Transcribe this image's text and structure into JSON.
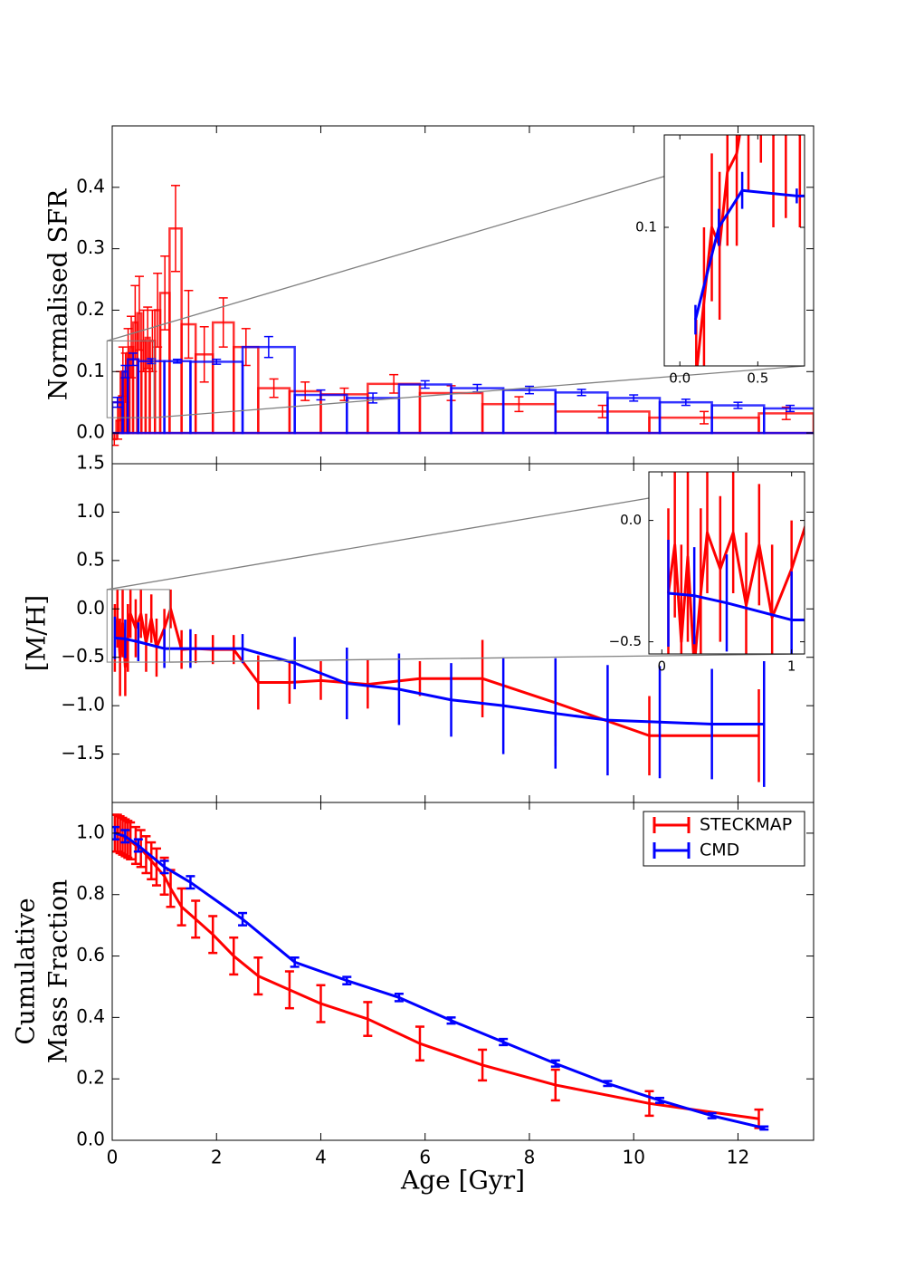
{
  "chart_data": [
    {
      "type": "histogram",
      "ylabel": "Normalised SFR",
      "xlim": [
        0,
        13.45
      ],
      "ylim": [
        -0.05,
        0.5
      ],
      "yticks": [
        {
          "value": 0,
          "label": "0.0"
        },
        0.1,
        0.2,
        0.3,
        0.4
      ],
      "series": [
        {
          "color": "#ff0000",
          "bins": [
            0.0,
            0.08,
            0.13,
            0.18,
            0.23,
            0.28,
            0.33,
            0.4,
            0.48,
            0.56,
            0.64,
            0.72,
            0.82,
            0.92,
            1.1,
            1.33,
            1.6,
            1.93,
            2.33,
            2.8,
            3.4,
            4.0,
            4.9,
            5.9,
            7.1,
            8.5,
            10.3,
            12.4,
            13.45
          ],
          "values": [
            -0.01,
            0.02,
            0.06,
            0.1,
            0.09,
            0.13,
            0.14,
            0.18,
            0.195,
            0.15,
            0.155,
            0.15,
            0.2,
            0.228,
            0.333,
            0.177,
            0.128,
            0.18,
            0.14,
            0.073,
            0.068,
            0.063,
            0.08,
            0.065,
            0.047,
            0.035,
            0.025,
            0.032
          ],
          "errors": [
            0.01,
            0.03,
            0.04,
            0.04,
            0.04,
            0.04,
            0.05,
            0.06,
            0.06,
            0.05,
            0.05,
            0.05,
            0.06,
            0.06,
            0.07,
            0.055,
            0.045,
            0.04,
            0.03,
            0.015,
            0.015,
            0.01,
            0.015,
            0.012,
            0.012,
            0.01,
            0.01,
            0.01
          ]
        },
        {
          "color": "#0000ff",
          "bins": [
            0,
            0.2,
            0.3,
            0.5,
            1.0,
            1.5,
            2.5,
            3.5,
            4.5,
            5.5,
            6.5,
            7.5,
            8.5,
            9.5,
            10.5,
            11.5,
            12.5,
            13.5
          ],
          "values": [
            0.05,
            0.1,
            0.12,
            0.117,
            0.117,
            0.116,
            0.14,
            0.062,
            0.057,
            0.079,
            0.073,
            0.07,
            0.066,
            0.057,
            0.05,
            0.045,
            0.04
          ],
          "errors": [
            0.008,
            0.01,
            0.01,
            0.004,
            0.003,
            0.004,
            0.017,
            0.008,
            0.008,
            0.006,
            0.006,
            0.006,
            0.005,
            0.005,
            0.005,
            0.005,
            0.005
          ]
        }
      ],
      "inset": {
        "xlim": [
          -0.1,
          0.8
        ],
        "ylim": [
          0.025,
          0.15
        ],
        "xticks": [
          {
            "value": 0,
            "label": "0.0"
          },
          0.5
        ],
        "yticks": [
          0.1
        ]
      }
    },
    {
      "type": "line",
      "ylabel": "[M/H]",
      "xlim": [
        0,
        13.45
      ],
      "ylim": [
        -2.0,
        1.5
      ],
      "yticks": [
        1.5,
        {
          "value": 1,
          "label": "1.0"
        },
        0.5,
        {
          "value": 0,
          "label": "0.0"
        },
        {
          "value": -0.5,
          "label": "−0.5"
        },
        {
          "value": -1,
          "label": "−1.0"
        },
        {
          "value": -1.5,
          "label": "−1.5"
        }
      ],
      "series": [
        {
          "color": "#ff0000",
          "x": [
            0.05,
            0.1,
            0.15,
            0.2,
            0.25,
            0.3,
            0.35,
            0.45,
            0.55,
            0.65,
            0.75,
            0.85,
            1.0,
            1.12,
            1.33,
            1.6,
            1.93,
            2.33,
            2.8,
            3.4,
            4.0,
            4.9,
            5.9,
            7.1,
            8.5,
            10.3,
            12.4
          ],
          "values": [
            -0.3,
            -0.1,
            -0.5,
            -0.15,
            -0.6,
            -0.3,
            -0.05,
            -0.2,
            -0.05,
            -0.35,
            -0.1,
            -0.4,
            -0.2,
            0.0,
            -0.42,
            -0.41,
            -0.42,
            -0.42,
            -0.76,
            -0.76,
            -0.74,
            -0.78,
            -0.72,
            -0.72,
            -0.97,
            -1.31,
            -1.31
          ],
          "errors": [
            0.35,
            0.3,
            0.4,
            0.35,
            0.3,
            0.35,
            0.25,
            0.3,
            0.25,
            0.3,
            0.25,
            0.3,
            0.2,
            0.2,
            0.2,
            0.15,
            0.15,
            0.15,
            0.28,
            0.22,
            0.2,
            0.25,
            0.18,
            0.4,
            0.45,
            0.41,
            0.48
          ]
        },
        {
          "color": "#0000ff",
          "x": [
            0.05,
            0.25,
            0.5,
            1.0,
            1.5,
            2.5,
            3.5,
            4.5,
            5.5,
            6.5,
            7.5,
            8.5,
            9.5,
            10.5,
            11.5,
            12.5
          ],
          "values": [
            -0.3,
            -0.31,
            -0.34,
            -0.41,
            -0.41,
            -0.41,
            -0.56,
            -0.77,
            -0.83,
            -0.94,
            -1.0,
            -1.08,
            -1.15,
            -1.17,
            -1.19,
            -1.19
          ],
          "errors": [
            0.22,
            0.2,
            0.2,
            0.2,
            0.2,
            0.15,
            0.27,
            0.37,
            0.37,
            0.38,
            0.5,
            0.57,
            0.57,
            0.58,
            0.57,
            0.65
          ]
        }
      ],
      "inset": {
        "xlim": [
          -0.1,
          1.1
        ],
        "ylim": [
          -0.55,
          0.2
        ],
        "xticks": [
          0,
          1
        ],
        "yticks": [
          {
            "value": 0,
            "label": "0.0"
          },
          {
            "value": -0.5,
            "label": "−0.5"
          }
        ]
      }
    },
    {
      "type": "line",
      "ylabel": [
        "Cumulative",
        "Mass Fraction"
      ],
      "xlabel": "Age [Gyr]",
      "xlim": [
        0,
        13.45
      ],
      "ylim": [
        0,
        1.1
      ],
      "xticks": [
        0,
        2,
        4,
        6,
        8,
        10,
        12
      ],
      "yticks": [
        {
          "value": 0,
          "label": "0.0"
        },
        0.2,
        0.4,
        0.6,
        0.8,
        {
          "value": 1,
          "label": "1.0"
        }
      ],
      "legend": "upper right",
      "series": [
        {
          "name": "STECKMAP",
          "color": "#ff0000",
          "x": [
            0.05,
            0.1,
            0.15,
            0.2,
            0.25,
            0.3,
            0.35,
            0.45,
            0.55,
            0.65,
            0.75,
            0.85,
            1.0,
            1.12,
            1.33,
            1.6,
            1.93,
            2.33,
            2.8,
            3.4,
            4.0,
            4.9,
            5.9,
            7.1,
            8.5,
            10.3,
            12.4
          ],
          "values": [
            1.0,
            1.0,
            0.995,
            0.99,
            0.985,
            0.98,
            0.975,
            0.96,
            0.95,
            0.93,
            0.91,
            0.89,
            0.86,
            0.82,
            0.76,
            0.72,
            0.67,
            0.6,
            0.535,
            0.49,
            0.445,
            0.395,
            0.315,
            0.245,
            0.18,
            0.12,
            0.07
          ],
          "errors": [
            0.06,
            0.06,
            0.06,
            0.06,
            0.06,
            0.06,
            0.06,
            0.06,
            0.06,
            0.06,
            0.06,
            0.06,
            0.06,
            0.06,
            0.06,
            0.06,
            0.06,
            0.06,
            0.06,
            0.06,
            0.06,
            0.055,
            0.055,
            0.05,
            0.05,
            0.04,
            0.03
          ]
        },
        {
          "name": "CMD",
          "color": "#0000ff",
          "x": [
            0.05,
            0.25,
            0.5,
            1.0,
            1.5,
            2.5,
            3.5,
            4.5,
            5.5,
            6.5,
            7.5,
            8.5,
            9.5,
            10.5,
            11.5,
            12.5
          ],
          "values": [
            1.0,
            0.99,
            0.96,
            0.89,
            0.84,
            0.72,
            0.58,
            0.52,
            0.465,
            0.39,
            0.32,
            0.25,
            0.185,
            0.13,
            0.08,
            0.04
          ],
          "errors": [
            0.02,
            0.02,
            0.02,
            0.02,
            0.02,
            0.02,
            0.015,
            0.012,
            0.012,
            0.01,
            0.01,
            0.01,
            0.008,
            0.008,
            0.008,
            0.005
          ]
        }
      ]
    }
  ]
}
